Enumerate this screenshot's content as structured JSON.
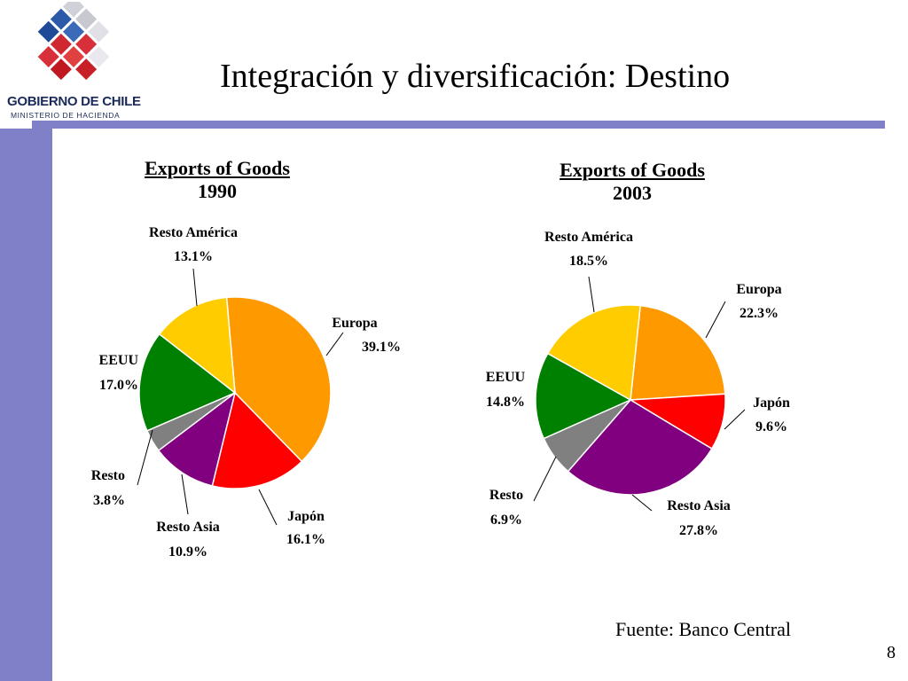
{
  "header": {
    "logo_name": "GOBIERNO DE CHILE",
    "logo_subtitle": "MINISTERIO DE HACIENDA",
    "title": "Integración y diversificación: Destino"
  },
  "colors": {
    "sidebar": "#8080c8",
    "Europa": "#ff9900",
    "Japón": "#ff0000",
    "Resto Asia": "#800080",
    "Resto": "#808080",
    "EEUU": "#008000",
    "Resto América": "#ffcc00"
  },
  "chart_data": [
    {
      "type": "pie",
      "title": "Exports of Goods",
      "subtitle": "1990",
      "slices": [
        {
          "label": "Europa",
          "value": 39.1,
          "display": "39.1%"
        },
        {
          "label": "Japón",
          "value": 16.1,
          "display": "16.1%"
        },
        {
          "label": "Resto Asia",
          "value": 10.9,
          "display": "10.9%"
        },
        {
          "label": "Resto",
          "value": 3.8,
          "display": "3.8%"
        },
        {
          "label": "EEUU",
          "value": 17.0,
          "display": "17.0%"
        },
        {
          "label": "Resto América",
          "value": 13.1,
          "display": "13.1%"
        }
      ]
    },
    {
      "type": "pie",
      "title": "Exports of Goods",
      "subtitle": "2003",
      "slices": [
        {
          "label": "Europa",
          "value": 22.3,
          "display": "22.3%"
        },
        {
          "label": "Japón",
          "value": 9.6,
          "display": "9.6%"
        },
        {
          "label": "Resto Asia",
          "value": 27.8,
          "display": "27.8%"
        },
        {
          "label": "Resto",
          "value": 6.9,
          "display": "6.9%"
        },
        {
          "label": "EEUU",
          "value": 14.8,
          "display": "14.8%"
        },
        {
          "label": "Resto América",
          "value": 18.5,
          "display": "18.5%"
        }
      ]
    }
  ],
  "footer": {
    "source": "Fuente: Banco Central",
    "page_number": "8"
  }
}
